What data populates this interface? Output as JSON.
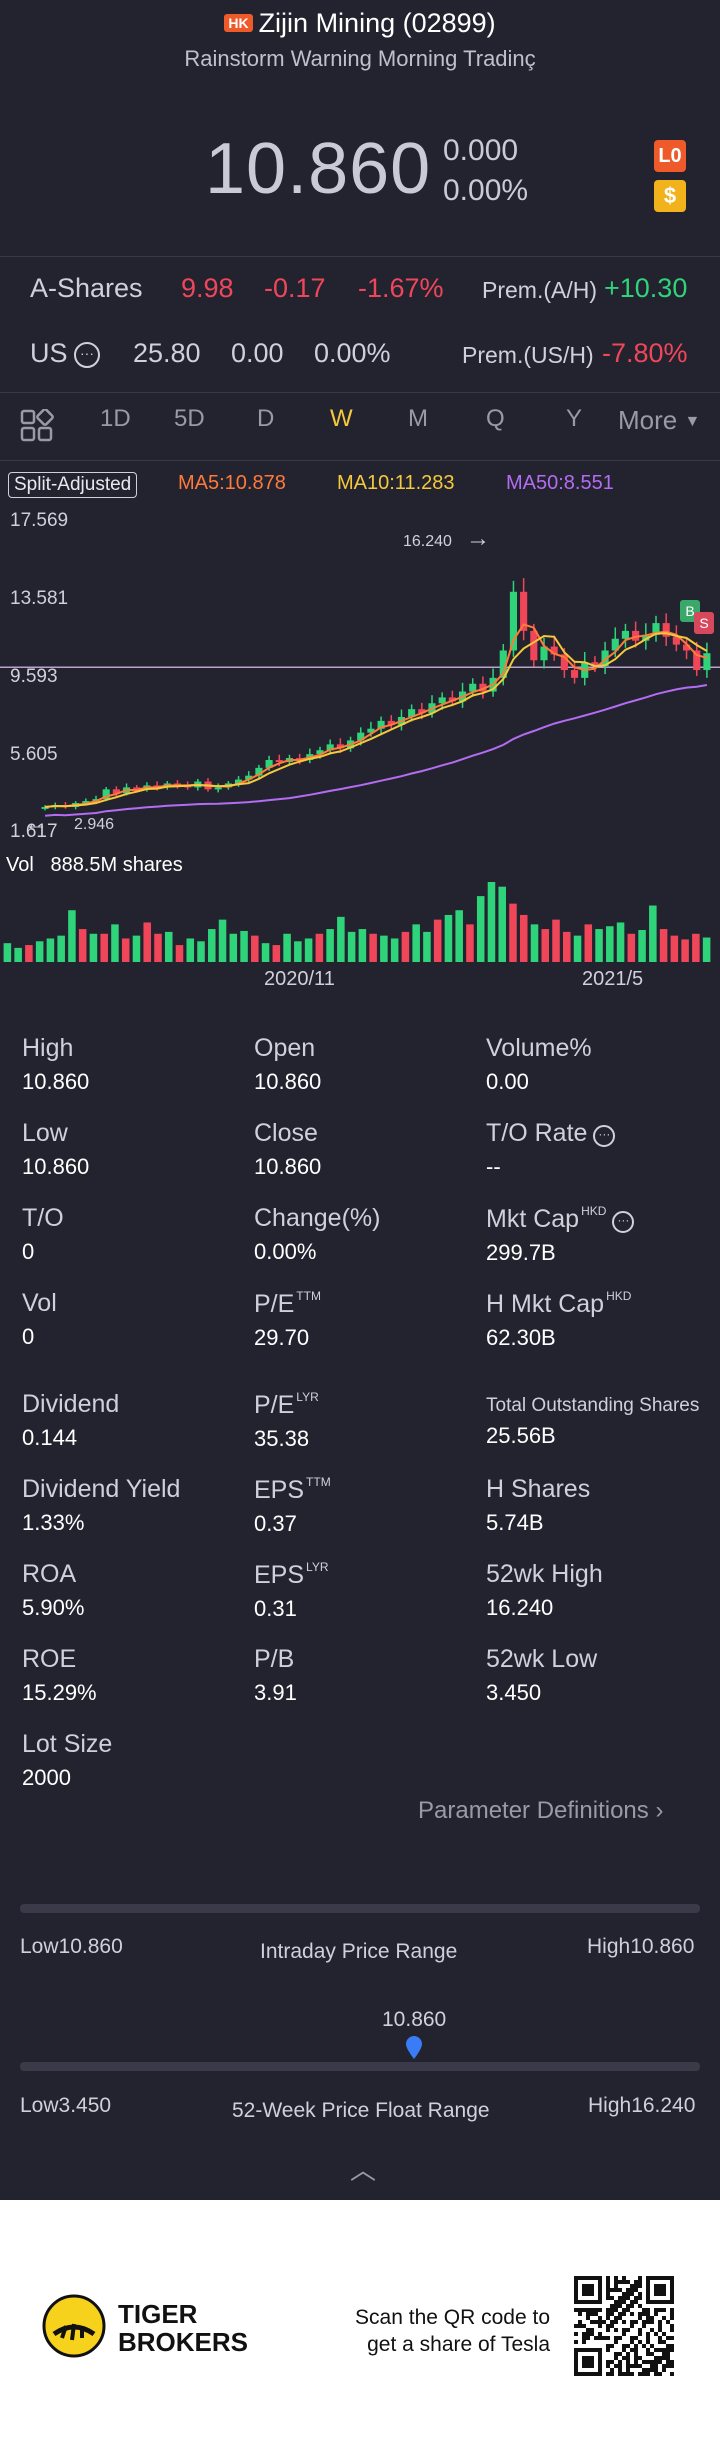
{
  "header": {
    "market_badge": "HK",
    "title": "Zijin Mining (02899)",
    "subtitle": "Rainstorm Warning Morning Tradinç"
  },
  "quote": {
    "price": "10.860",
    "change": "0.000",
    "change_pct": "0.00%",
    "badge_lo": "L0",
    "badge_s": "$"
  },
  "a_shares": {
    "label": "A-Shares",
    "price": "9.98",
    "change": "-0.17",
    "change_pct": "-1.67%",
    "prem_label": "Prem.(A/H)",
    "prem_value": "+10.30"
  },
  "us": {
    "label": "US",
    "price": "25.80",
    "change": "0.00",
    "change_pct": "0.00%",
    "prem_label": "Prem.(US/H)",
    "prem_value": "-7.80%"
  },
  "tabs": [
    "1D",
    "5D",
    "D",
    "W",
    "M",
    "Q",
    "Y",
    "More"
  ],
  "active_tab": "W",
  "chart": {
    "split_label": "Split-Adjusted",
    "ma5": "MA5:10.878",
    "ma10": "MA10:11.283",
    "ma50": "MA50:8.551",
    "y_ticks": [
      "17.569",
      "13.581",
      "9.593",
      "5.605",
      "1.617"
    ],
    "high_marker": "16.240",
    "low_marker": "2.946",
    "vol_label": "Vol",
    "vol_value": "888.5M shares",
    "x_ticks": [
      "2020/11",
      "2021/5"
    ],
    "colors": {
      "up": "#2fd47a",
      "down": "#f0465a",
      "ma5": "#ff7a3a",
      "ma10": "#f5c93a",
      "ma50": "#b46cf2"
    }
  },
  "chart_data": {
    "type": "candlestick",
    "ylim": [
      1.617,
      17.569
    ],
    "y_ticks": [
      17.569,
      13.581,
      9.593,
      5.605,
      1.617
    ],
    "x_ticks": [
      "2020/11",
      "2021/5"
    ],
    "high": 16.24,
    "low": 2.946,
    "closes": [
      3.0,
      3.1,
      3.0,
      3.2,
      3.3,
      3.4,
      3.9,
      3.7,
      4.0,
      3.9,
      4.1,
      4.0,
      4.2,
      4.1,
      4.0,
      4.3,
      3.9,
      4.0,
      4.2,
      4.4,
      4.6,
      5.0,
      5.4,
      5.3,
      5.5,
      5.4,
      5.7,
      5.9,
      6.2,
      6.0,
      6.4,
      6.8,
      7.0,
      7.4,
      7.2,
      7.6,
      8.0,
      7.8,
      8.3,
      8.6,
      8.4,
      8.9,
      9.3,
      8.9,
      9.6,
      11.0,
      14.0,
      12.0,
      10.5,
      11.2,
      10.8,
      10.0,
      9.6,
      10.4,
      10.2,
      11.0,
      11.6,
      12.0,
      11.5,
      11.8,
      12.4,
      11.7,
      11.3,
      11.0,
      10.0,
      10.86
    ],
    "volumes": [
      20,
      15,
      18,
      22,
      25,
      28,
      55,
      35,
      30,
      30,
      40,
      25,
      28,
      42,
      30,
      32,
      18,
      25,
      22,
      35,
      45,
      30,
      33,
      28,
      20,
      18,
      30,
      22,
      25,
      30,
      35,
      48,
      32,
      35,
      30,
      28,
      25,
      32,
      40,
      32,
      45,
      50,
      55,
      40,
      70,
      85,
      80,
      62,
      50,
      40,
      35,
      45,
      32,
      28,
      40,
      35,
      38,
      42,
      30,
      34,
      60,
      35,
      28,
      24,
      30,
      26
    ]
  },
  "stats": [
    {
      "label": "High",
      "value": "10.860"
    },
    {
      "label": "Open",
      "value": "10.860"
    },
    {
      "label": "Volume%",
      "value": "0.00"
    },
    {
      "label": "Low",
      "value": "10.860"
    },
    {
      "label": "Close",
      "value": "10.860"
    },
    {
      "label": "T/O Rate",
      "value": "--"
    },
    {
      "label": "T/O",
      "value": "0"
    },
    {
      "label": "Change(%)",
      "value": "0.00%"
    },
    {
      "label": "Mkt Cap",
      "sup": "HKD",
      "value": "299.7B"
    },
    {
      "label": "Vol",
      "value": "0"
    },
    {
      "label": "P/E",
      "sup": "TTM",
      "value": "29.70"
    },
    {
      "label": "H Mkt Cap",
      "sup": "HKD",
      "value": "62.30B"
    },
    {
      "label": "Dividend",
      "value": "0.144"
    },
    {
      "label": "P/E",
      "sup": "LYR",
      "value": "35.38"
    },
    {
      "label": "Total Outstanding Shares",
      "value": "25.56B"
    },
    {
      "label": "Dividend Yield",
      "value": "1.33%"
    },
    {
      "label": "EPS",
      "sup": "TTM",
      "value": "0.37"
    },
    {
      "label": "H Shares",
      "value": "5.74B"
    },
    {
      "label": "ROA",
      "value": "5.90%"
    },
    {
      "label": "EPS",
      "sup": "LYR",
      "value": "0.31"
    },
    {
      "label": "52wk High",
      "value": "16.240"
    },
    {
      "label": "ROE",
      "value": "15.29%"
    },
    {
      "label": "P/B",
      "value": "3.91"
    },
    {
      "label": "52wk Low",
      "value": "3.450"
    },
    {
      "label": "Lot Size",
      "value": "2000"
    }
  ],
  "param_def": "Parameter Definitions",
  "intraday": {
    "low": "Low10.860",
    "title": "Intraday Price Range",
    "high": "High10.860"
  },
  "week52": {
    "current": "10.860",
    "low": "Low3.450",
    "title": "52-Week Price Float Range",
    "high": "High16.240",
    "low_value": 3.45,
    "high_value": 16.24,
    "current_value": 10.86
  },
  "footer": {
    "brand_line1": "TIGER",
    "brand_line2": "BROKERS",
    "promo_line1": "Scan the QR code to",
    "promo_line2": "get a share of Tesla"
  }
}
